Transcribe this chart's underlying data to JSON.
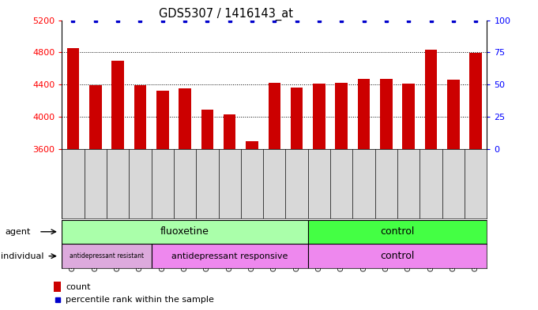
{
  "title": "GDS5307 / 1416143_at",
  "samples": [
    "GSM1059591",
    "GSM1059592",
    "GSM1059593",
    "GSM1059594",
    "GSM1059577",
    "GSM1059578",
    "GSM1059579",
    "GSM1059580",
    "GSM1059581",
    "GSM1059582",
    "GSM1059583",
    "GSM1059561",
    "GSM1059562",
    "GSM1059563",
    "GSM1059564",
    "GSM1059565",
    "GSM1059566",
    "GSM1059567",
    "GSM1059568"
  ],
  "counts": [
    4850,
    4390,
    4700,
    4395,
    4320,
    4350,
    4090,
    4030,
    3690,
    4420,
    4360,
    4415,
    4420,
    4470,
    4470,
    4415,
    4830,
    4460,
    4790
  ],
  "percentiles": [
    100,
    100,
    100,
    100,
    100,
    100,
    100,
    100,
    100,
    100,
    100,
    100,
    100,
    100,
    100,
    100,
    100,
    100,
    100
  ],
  "bar_color": "#cc0000",
  "dot_color": "#0000cc",
  "ylim_left": [
    3600,
    5200
  ],
  "ylim_right": [
    0,
    100
  ],
  "yticks_left": [
    3600,
    4000,
    4400,
    4800,
    5200
  ],
  "yticks_right": [
    0,
    25,
    50,
    75,
    100
  ],
  "agent_fluox_color": "#aaffaa",
  "agent_ctrl_color": "#44ff44",
  "indiv_resist_color": "#ddaadd",
  "indiv_resp_color": "#ee88ee",
  "indiv_ctrl_color": "#ee88ee",
  "legend_count_color": "#cc0000",
  "legend_dot_color": "#0000cc",
  "background_color": "#ffffff",
  "bar_width": 0.55,
  "fluox_count": 11,
  "resist_count": 4,
  "resp_count": 7,
  "ctrl_count": 8
}
